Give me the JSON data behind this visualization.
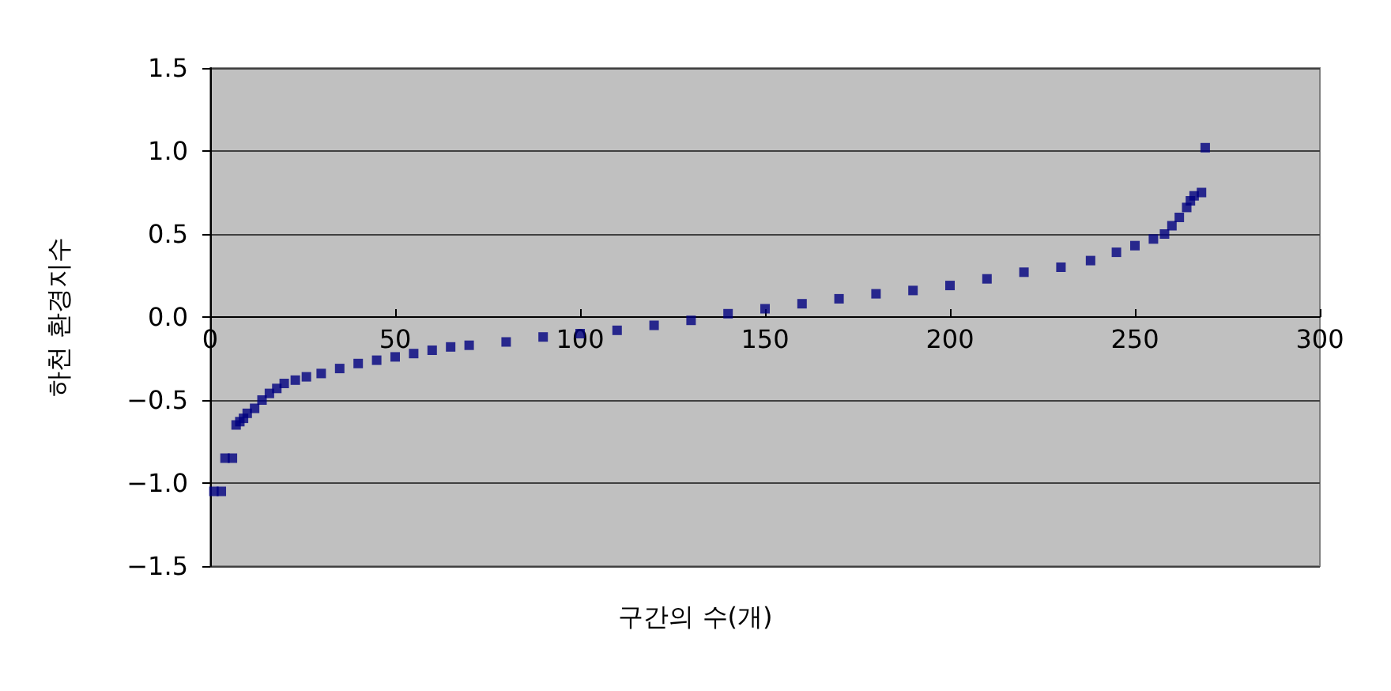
{
  "chart_data": {
    "type": "scatter",
    "xlabel": "구간의 수(개)",
    "ylabel": "하천 환경지수",
    "x": [
      1,
      3,
      4,
      6,
      7,
      8,
      9,
      10,
      12,
      14,
      16,
      18,
      20,
      23,
      26,
      30,
      35,
      40,
      45,
      50,
      55,
      60,
      65,
      70,
      80,
      90,
      100,
      110,
      120,
      130,
      140,
      150,
      160,
      170,
      180,
      190,
      200,
      210,
      220,
      230,
      238,
      245,
      250,
      255,
      258,
      260,
      262,
      264,
      265,
      266,
      268,
      269
    ],
    "series": [
      {
        "color": "#000080",
        "values": [
          -1.05,
          -1.05,
          -0.85,
          -0.85,
          -0.65,
          -0.63,
          -0.61,
          -0.58,
          -0.55,
          -0.5,
          -0.46,
          -0.43,
          -0.4,
          -0.38,
          -0.36,
          -0.34,
          -0.31,
          -0.28,
          -0.26,
          -0.24,
          -0.22,
          -0.2,
          -0.18,
          -0.17,
          -0.15,
          -0.12,
          -0.1,
          -0.08,
          -0.05,
          -0.02,
          0.02,
          0.05,
          0.08,
          0.11,
          0.14,
          0.16,
          0.19,
          0.23,
          0.27,
          0.3,
          0.34,
          0.39,
          0.43,
          0.47,
          0.5,
          0.55,
          0.6,
          0.66,
          0.7,
          0.73,
          0.75,
          1.02
        ]
      }
    ],
    "xlim": [
      0,
      300
    ],
    "xticks": [
      0,
      50,
      100,
      150,
      200,
      250,
      300
    ],
    "ylim": [
      -1.5,
      1.5
    ],
    "yticks": [
      1.5,
      {
        "value": 1.0,
        "label": "1.0"
      },
      0.5,
      {
        "value": 0,
        "label": "0.0"
      },
      {
        "value": -0.5,
        "label": "−0.5"
      },
      {
        "value": -1.0,
        "label": "−1.0"
      },
      {
        "value": -1.5,
        "label": "−1.5"
      }
    ],
    "grid": "y",
    "marker": "square"
  }
}
